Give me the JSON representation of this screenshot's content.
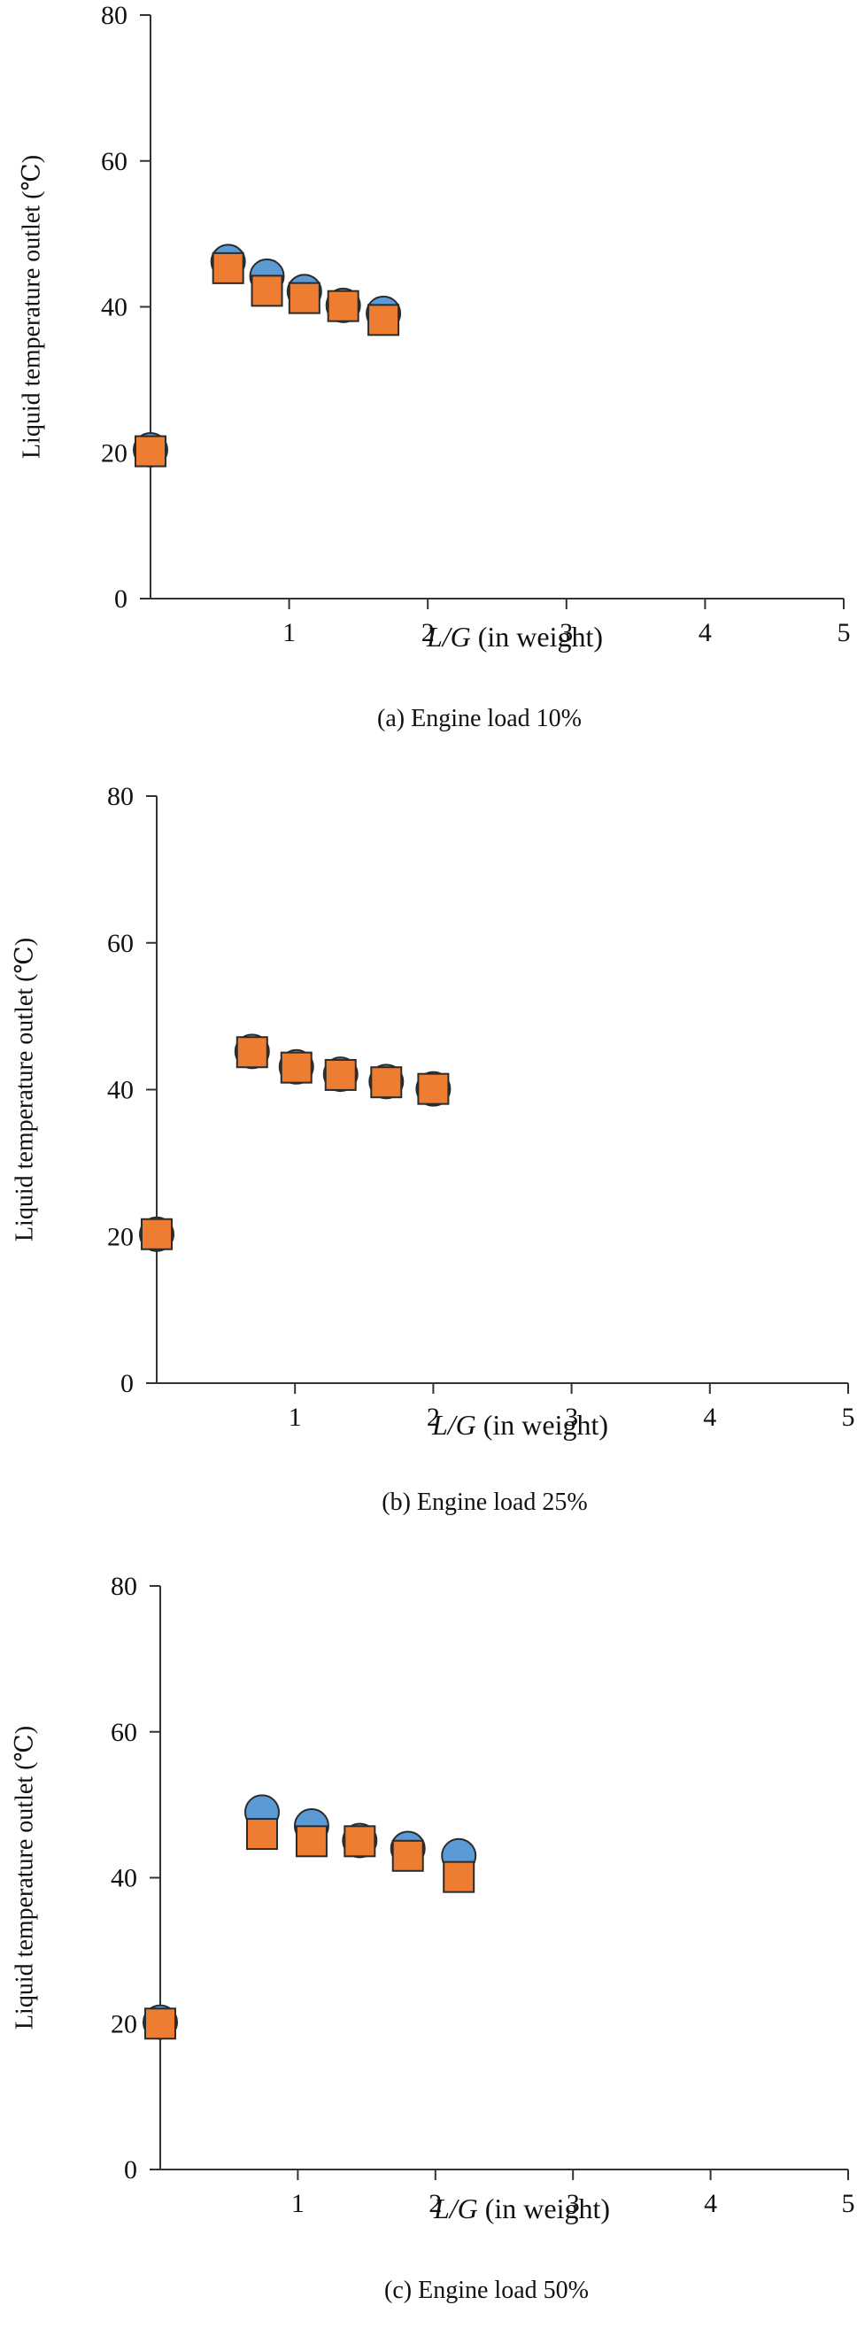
{
  "colors": {
    "series1": "#5b9bd5",
    "series2": "#ed7d31",
    "axis": "#333333"
  },
  "chart_data": [
    {
      "type": "scatter",
      "title": "(a) Engine load 10%",
      "caption": "(a) Engine load 10%",
      "xlabel_italic": "L/G",
      "xlabel_rest": " (in weight)",
      "ylabel": "Liquid temperature outlet (℃)",
      "xlim": [
        0,
        5
      ],
      "ylim": [
        0,
        80
      ],
      "xticks": [
        "1",
        "2",
        "3",
        "4",
        "5"
      ],
      "yticks": [
        "0",
        "20",
        "40",
        "60",
        "80"
      ],
      "series": [
        {
          "name": "circle",
          "marker": "circle",
          "points": [
            [
              0.0,
              20.4
            ],
            [
              0.56,
              46.2
            ],
            [
              0.84,
              44.2
            ],
            [
              1.11,
              42.1
            ],
            [
              1.39,
              40.2
            ],
            [
              1.68,
              39.1
            ]
          ]
        },
        {
          "name": "square",
          "marker": "square",
          "points": [
            [
              0.0,
              20.2
            ],
            [
              0.56,
              45.3
            ],
            [
              0.84,
              42.2
            ],
            [
              1.11,
              41.2
            ],
            [
              1.39,
              40.1
            ],
            [
              1.68,
              38.2
            ]
          ]
        }
      ]
    },
    {
      "type": "scatter",
      "title": "(b) Engine load 25%",
      "caption": "(b) Engine load 25%",
      "xlabel_italic": "L/G",
      "xlabel_rest": " (in weight)",
      "ylabel": "Liquid temperature outlet (℃)",
      "xlim": [
        0,
        5
      ],
      "ylim": [
        0,
        80
      ],
      "xticks": [
        "1",
        "2",
        "3",
        "4",
        "5"
      ],
      "yticks": [
        "0",
        "20",
        "40",
        "60",
        "80"
      ],
      "series": [
        {
          "name": "circle",
          "marker": "circle",
          "points": [
            [
              0.0,
              20.3
            ],
            [
              0.69,
              45.2
            ],
            [
              1.01,
              43.1
            ],
            [
              1.33,
              42.1
            ],
            [
              1.66,
              41.1
            ],
            [
              2.0,
              40.1
            ]
          ]
        },
        {
          "name": "square",
          "marker": "square",
          "points": [
            [
              0.0,
              20.3
            ],
            [
              0.69,
              45.1
            ],
            [
              1.01,
              43.0
            ],
            [
              1.33,
              42.0
            ],
            [
              1.66,
              41.0
            ],
            [
              2.0,
              40.1
            ]
          ]
        }
      ]
    },
    {
      "type": "scatter",
      "title": "(c) Engine load 50%",
      "caption": "(c) Engine load 50%",
      "xlabel_italic": "L/G",
      "xlabel_rest": " (in weight)",
      "ylabel": "Liquid temperature outlet (℃)",
      "xlim": [
        0,
        5
      ],
      "ylim": [
        0,
        80
      ],
      "xticks": [
        "1",
        "2",
        "3",
        "4",
        "5"
      ],
      "yticks": [
        "0",
        "20",
        "40",
        "60",
        "80"
      ],
      "series": [
        {
          "name": "circle",
          "marker": "circle",
          "points": [
            [
              0.0,
              20.2
            ],
            [
              0.74,
              49.0
            ],
            [
              1.1,
              47.1
            ],
            [
              1.45,
              45.1
            ],
            [
              1.8,
              44.0
            ],
            [
              2.17,
              43.0
            ]
          ]
        },
        {
          "name": "square",
          "marker": "square",
          "points": [
            [
              0.0,
              20.0
            ],
            [
              0.74,
              46.0
            ],
            [
              1.1,
              45.0
            ],
            [
              1.45,
              45.0
            ],
            [
              1.8,
              43.0
            ],
            [
              2.17,
              40.1
            ]
          ]
        }
      ]
    }
  ]
}
